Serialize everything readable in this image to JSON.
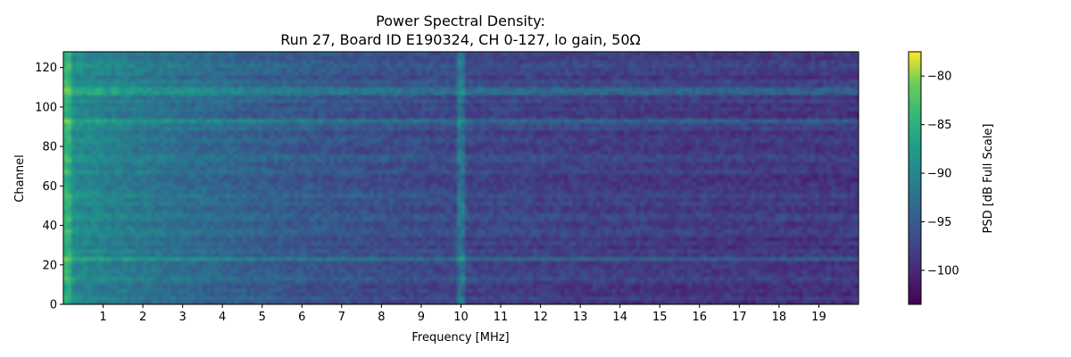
{
  "chart_data": {
    "type": "heatmap",
    "title_lines": [
      "Power Spectral Density:",
      "Run 27, Board ID E190324, CH 0-127, lo gain, 50Ω"
    ],
    "xlabel": "Frequency [MHz]",
    "ylabel": "Channel",
    "xlim": [
      0,
      20
    ],
    "ylim": [
      0,
      128
    ],
    "x_ticks": [
      1,
      2,
      3,
      4,
      5,
      6,
      7,
      8,
      9,
      10,
      11,
      12,
      13,
      14,
      15,
      16,
      17,
      18,
      19
    ],
    "x_tick_labels": [
      "1",
      "2",
      "3",
      "4",
      "5",
      "6",
      "7",
      "8",
      "9",
      "10",
      "11",
      "12",
      "13",
      "14",
      "15",
      "16",
      "17",
      "18",
      "19"
    ],
    "y_ticks": [
      0,
      20,
      40,
      60,
      80,
      100,
      120
    ],
    "y_tick_labels": [
      "0",
      "20",
      "40",
      "60",
      "80",
      "100",
      "120"
    ],
    "colorbar": {
      "label": "PSD [dB Full Scale]",
      "range": [
        -103.5,
        -77.5
      ],
      "ticks": [
        -80,
        -85,
        -90,
        -95,
        -100
      ],
      "tick_labels": [
        "−80",
        "−85",
        "−90",
        "−95",
        "−100"
      ],
      "colormap": "viridis"
    },
    "features": {
      "low_freq_level_db": -90.5,
      "high_freq_level_db": -99.5,
      "spur_frequency_mhz": 10,
      "spur_level_db": -88,
      "bright_channel_rows": [
        23,
        93,
        108
      ],
      "bright_channel_level_db": -91
    }
  },
  "colors": {
    "axis": "#000000",
    "background": "#ffffff"
  }
}
